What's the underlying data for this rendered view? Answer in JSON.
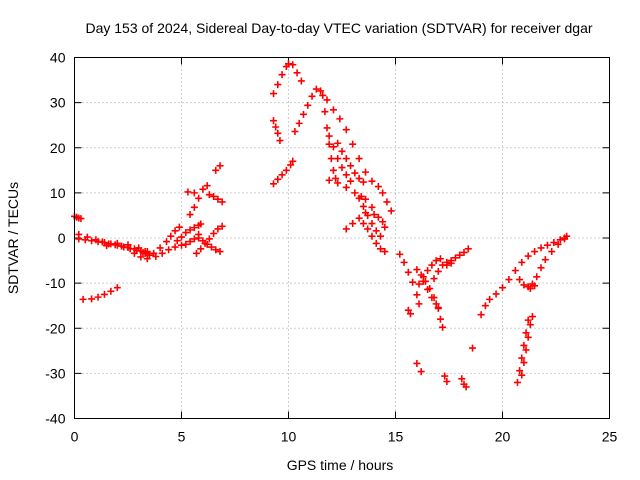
{
  "chart_data": {
    "type": "scatter",
    "title": "Day 153 of 2024, Sidereal Day-to-day VTEC variation (SDTVAR) for receiver dgar",
    "xlabel": "GPS time / hours",
    "ylabel": "SDTVAR / TECUs",
    "xlim": [
      0,
      25
    ],
    "ylim": [
      -40,
      40
    ],
    "x_ticks": [
      "0",
      "5",
      "10",
      "15",
      "20",
      "25"
    ],
    "y_ticks": [
      "-40",
      "-30",
      "-20",
      "-10",
      "0",
      "10",
      "20",
      "30",
      "40"
    ],
    "grid": true,
    "marker": "+",
    "series": [
      {
        "color": "#ff0000",
        "tracks": [
          [
            [
              0.0,
              4.8
            ],
            [
              0.1,
              4.6
            ],
            [
              0.2,
              4.4
            ],
            [
              0.3,
              4.3
            ]
          ],
          [
            [
              0.2,
              -0.2
            ],
            [
              0.5,
              -0.4
            ],
            [
              0.8,
              -0.6
            ],
            [
              1.1,
              -0.8
            ],
            [
              1.4,
              -1.0
            ],
            [
              1.7,
              -1.3
            ],
            [
              2.0,
              -1.6
            ],
            [
              2.3,
              -2.0
            ],
            [
              2.6,
              -2.4
            ],
            [
              2.9,
              -2.8
            ],
            [
              3.2,
              -3.2
            ],
            [
              3.4,
              -3.0
            ]
          ],
          [
            [
              0.2,
              0.8
            ],
            [
              0.6,
              0.2
            ],
            [
              1.0,
              -0.4
            ],
            [
              1.3,
              -0.9
            ],
            [
              1.6,
              -1.3
            ],
            [
              1.9,
              -1.5
            ],
            [
              2.2,
              -1.8
            ],
            [
              2.5,
              -2.1
            ],
            [
              2.8,
              -2.4
            ],
            [
              3.1,
              -2.9
            ],
            [
              3.3,
              -3.4
            ],
            [
              3.5,
              -3.8
            ]
          ],
          [
            [
              0.4,
              -13.6
            ],
            [
              0.8,
              -13.5
            ],
            [
              1.1,
              -13.1
            ],
            [
              1.4,
              -12.5
            ],
            [
              1.7,
              -11.8
            ],
            [
              2.0,
              -11.0
            ]
          ],
          [
            [
              1.5,
              -1.7
            ],
            [
              2.0,
              -1.2
            ],
            [
              2.5,
              -1.5
            ],
            [
              3.0,
              -2.2
            ],
            [
              3.3,
              -3.0
            ],
            [
              3.5,
              -3.8
            ],
            [
              3.8,
              -4.1
            ],
            [
              4.1,
              -3.4
            ],
            [
              4.4,
              -2.6
            ],
            [
              4.7,
              -2.0
            ],
            [
              5.0,
              -1.6
            ],
            [
              5.2,
              -1.4
            ],
            [
              5.4,
              -0.8
            ],
            [
              5.6,
              -0.2
            ],
            [
              5.8,
              0.8
            ]
          ],
          [
            [
              2.8,
              -3.4
            ],
            [
              3.1,
              -4.2
            ],
            [
              3.4,
              -4.6
            ],
            [
              3.7,
              -3.4
            ],
            [
              4.0,
              -2.2
            ],
            [
              4.3,
              -0.8
            ],
            [
              4.5,
              0.4
            ],
            [
              4.7,
              1.6
            ],
            [
              4.9,
              2.4
            ]
          ],
          [
            [
              4.8,
              -0.6
            ],
            [
              5.0,
              0.2
            ],
            [
              5.2,
              1.2
            ],
            [
              5.4,
              1.8
            ],
            [
              5.6,
              2.3
            ],
            [
              5.8,
              2.8
            ],
            [
              5.9,
              3.1
            ]
          ],
          [
            [
              5.7,
              -3.4
            ],
            [
              5.9,
              -2.4
            ],
            [
              6.1,
              -1.2
            ],
            [
              6.3,
              -0.2
            ],
            [
              6.5,
              1.0
            ],
            [
              6.7,
              2.0
            ],
            [
              6.9,
              2.6
            ]
          ],
          [
            [
              5.8,
              0.0
            ],
            [
              6.0,
              -0.6
            ],
            [
              6.2,
              -1.4
            ],
            [
              6.4,
              -2.0
            ],
            [
              6.6,
              -2.6
            ],
            [
              6.8,
              -3.0
            ]
          ],
          [
            [
              5.4,
              5.2
            ],
            [
              5.6,
              6.8
            ],
            [
              5.8,
              8.8
            ],
            [
              6.0,
              10.8
            ],
            [
              6.2,
              11.6
            ]
          ],
          [
            [
              5.3,
              10.2
            ],
            [
              5.6,
              10.0
            ]
          ],
          [
            [
              6.3,
              9.6
            ],
            [
              6.5,
              9.2
            ],
            [
              6.7,
              8.6
            ],
            [
              6.9,
              8.0
            ]
          ],
          [
            [
              6.6,
              15.0
            ],
            [
              6.8,
              16.0
            ]
          ],
          [
            [
              9.3,
              12.0
            ],
            [
              9.5,
              13.0
            ],
            [
              9.7,
              14.0
            ],
            [
              9.9,
              15.0
            ],
            [
              10.1,
              16.2
            ],
            [
              10.2,
              17.0
            ]
          ],
          [
            [
              9.3,
              26.0
            ],
            [
              9.4,
              24.6
            ],
            [
              9.5,
              23.2
            ],
            [
              9.6,
              21.6
            ]
          ],
          [
            [
              9.3,
              32.0
            ],
            [
              9.5,
              34.0
            ],
            [
              9.7,
              36.2
            ],
            [
              9.9,
              38.0
            ],
            [
              10.0,
              38.6
            ],
            [
              10.2,
              38.4
            ],
            [
              10.4,
              36.6
            ],
            [
              10.6,
              34.8
            ]
          ],
          [
            [
              10.3,
              23.6
            ],
            [
              10.5,
              25.4
            ],
            [
              10.7,
              27.4
            ],
            [
              10.9,
              29.4
            ],
            [
              11.1,
              31.4
            ],
            [
              11.3,
              33.0
            ],
            [
              11.5,
              32.6
            ],
            [
              11.8,
              30.6
            ],
            [
              12.1,
              28.4
            ],
            [
              12.4,
              26.4
            ],
            [
              12.7,
              24.0
            ],
            [
              13.0,
              20.8
            ],
            [
              13.3,
              17.6
            ],
            [
              13.6,
              14.6
            ],
            [
              13.9,
              12.6
            ],
            [
              14.2,
              11.4
            ],
            [
              14.4,
              10.0
            ],
            [
              14.6,
              8.0
            ],
            [
              14.8,
              6.0
            ]
          ],
          [
            [
              11.6,
              31.6
            ],
            [
              11.7,
              28.0
            ],
            [
              11.8,
              24.4
            ],
            [
              11.9,
              20.8
            ],
            [
              12.0,
              17.6
            ],
            [
              12.1,
              15.0
            ],
            [
              12.2,
              13.2
            ]
          ],
          [
            [
              11.9,
              22.6
            ],
            [
              12.1,
              20.2
            ],
            [
              12.3,
              17.6
            ],
            [
              12.5,
              15.6
            ],
            [
              12.7,
              14.0
            ],
            [
              12.9,
              12.6
            ]
          ],
          [
            [
              12.3,
              21.0
            ],
            [
              12.5,
              19.2
            ],
            [
              12.7,
              17.6
            ],
            [
              12.9,
              16.0
            ],
            [
              13.1,
              14.4
            ],
            [
              13.3,
              13.2
            ],
            [
              13.5,
              12.4
            ]
          ],
          [
            [
              11.9,
              12.8
            ],
            [
              12.3,
              12.2
            ],
            [
              12.7,
              11.2
            ],
            [
              13.1,
              10.0
            ],
            [
              13.4,
              9.2
            ],
            [
              13.6,
              8.6
            ]
          ],
          [
            [
              12.7,
              2.0
            ],
            [
              13.0,
              3.2
            ],
            [
              13.3,
              4.4
            ],
            [
              13.6,
              5.6
            ],
            [
              13.9,
              6.8
            ]
          ],
          [
            [
              13.3,
              8.8
            ],
            [
              13.5,
              7.0
            ],
            [
              13.7,
              5.0
            ],
            [
              13.9,
              3.2
            ],
            [
              14.1,
              1.6
            ],
            [
              14.3,
              0.4
            ]
          ],
          [
            [
              13.5,
              3.2
            ],
            [
              13.7,
              2.0
            ],
            [
              13.9,
              0.4
            ],
            [
              14.1,
              -1.2
            ],
            [
              14.3,
              -2.4
            ],
            [
              14.5,
              -3.0
            ]
          ],
          [
            [
              14.0,
              5.2
            ],
            [
              14.2,
              4.6
            ],
            [
              14.4,
              3.6
            ],
            [
              14.5,
              2.4
            ]
          ],
          [
            [
              15.2,
              -3.6
            ],
            [
              15.4,
              -5.4
            ],
            [
              15.6,
              -7.6
            ],
            [
              15.8,
              -9.8
            ],
            [
              16.0,
              -12.6
            ],
            [
              16.1,
              -14.6
            ]
          ],
          [
            [
              15.6,
              -16.0
            ],
            [
              15.7,
              -16.8
            ]
          ],
          [
            [
              16.0,
              -7.0
            ],
            [
              16.2,
              -8.2
            ],
            [
              16.4,
              -9.6
            ],
            [
              16.6,
              -11.2
            ],
            [
              16.8,
              -13.2
            ],
            [
              17.0,
              -15.6
            ],
            [
              17.1,
              -18.0
            ],
            [
              17.2,
              -19.8
            ]
          ],
          [
            [
              16.1,
              -10.2
            ],
            [
              16.3,
              -8.6
            ],
            [
              16.5,
              -7.2
            ],
            [
              16.7,
              -6.0
            ],
            [
              16.9,
              -5.0
            ],
            [
              17.1,
              -4.6
            ]
          ],
          [
            [
              16.3,
              -9.6
            ],
            [
              16.5,
              -11.4
            ],
            [
              16.7,
              -13.2
            ],
            [
              16.9,
              -14.6
            ],
            [
              17.0,
              -15.4
            ]
          ],
          [
            [
              16.8,
              -9.0
            ],
            [
              17.0,
              -7.4
            ],
            [
              17.2,
              -6.0
            ],
            [
              17.4,
              -5.4
            ],
            [
              17.6,
              -5.6
            ]
          ],
          [
            [
              17.4,
              -6.0
            ],
            [
              17.6,
              -5.0
            ],
            [
              17.8,
              -4.4
            ],
            [
              18.0,
              -3.8
            ],
            [
              18.2,
              -3.2
            ],
            [
              18.4,
              -2.4
            ]
          ],
          [
            [
              16.0,
              -27.8
            ],
            [
              16.2,
              -29.6
            ]
          ],
          [
            [
              17.3,
              -30.6
            ],
            [
              17.4,
              -31.8
            ]
          ],
          [
            [
              18.1,
              -31.2
            ],
            [
              18.2,
              -32.4
            ],
            [
              18.3,
              -33.0
            ]
          ],
          [
            [
              18.6,
              -24.4
            ]
          ],
          [
            [
              19.0,
              -17.0
            ],
            [
              19.2,
              -15.0
            ],
            [
              19.4,
              -13.6
            ],
            [
              19.7,
              -12.4
            ],
            [
              20.0,
              -11.0
            ],
            [
              20.3,
              -9.2
            ],
            [
              20.6,
              -7.2
            ],
            [
              20.9,
              -5.4
            ],
            [
              21.2,
              -4.0
            ],
            [
              21.5,
              -3.0
            ],
            [
              21.8,
              -2.2
            ],
            [
              22.1,
              -1.6
            ],
            [
              22.4,
              -1.0
            ],
            [
              22.7,
              -0.4
            ],
            [
              22.9,
              0.0
            ]
          ],
          [
            [
              20.8,
              -9.2
            ],
            [
              21.0,
              -10.4
            ],
            [
              21.2,
              -10.8
            ],
            [
              21.4,
              -10.2
            ],
            [
              21.6,
              -8.6
            ],
            [
              21.8,
              -6.6
            ],
            [
              22.0,
              -4.8
            ],
            [
              22.3,
              -3.0
            ],
            [
              22.6,
              -1.4
            ],
            [
              22.9,
              -0.2
            ],
            [
              23.0,
              0.4
            ]
          ],
          [
            [
              20.7,
              -32.0
            ],
            [
              20.8,
              -29.4
            ],
            [
              20.9,
              -26.6
            ],
            [
              21.0,
              -23.8
            ],
            [
              21.1,
              -21.0
            ],
            [
              21.2,
              -18.2
            ]
          ],
          [
            [
              20.9,
              -30.4
            ],
            [
              21.0,
              -27.6
            ],
            [
              21.1,
              -24.8
            ],
            [
              21.2,
              -22.0
            ],
            [
              21.3,
              -19.2
            ],
            [
              21.4,
              -17.4
            ]
          ],
          [
            [
              21.3,
              -11.2
            ],
            [
              21.5,
              -10.6
            ]
          ]
        ]
      }
    ]
  }
}
